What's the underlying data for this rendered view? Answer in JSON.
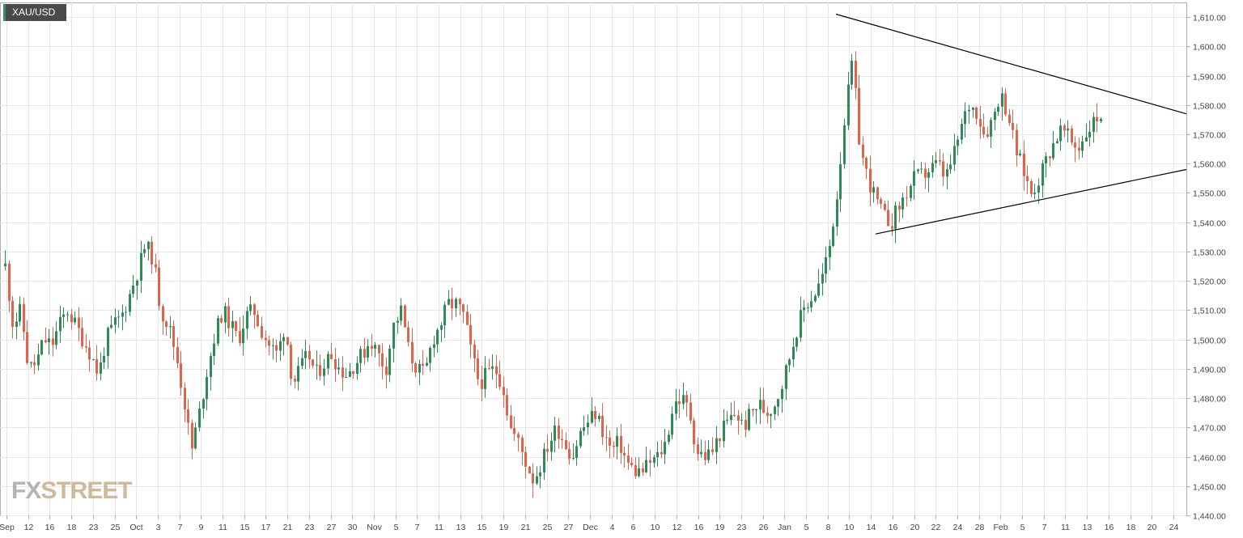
{
  "symbol": "XAU/USD",
  "watermark": {
    "fx": "FX",
    "street": "STREET"
  },
  "colors": {
    "up": "#2e8b57",
    "down": "#e0644c",
    "grid": "#e6e6e6",
    "axis": "#b0b0b0",
    "text": "#444444",
    "trendline": "#000000"
  },
  "chart_data": {
    "type": "candlestick",
    "title": "XAU/USD",
    "ylim": [
      1440,
      1615
    ],
    "yticks": [
      1440,
      1450,
      1460,
      1470,
      1480,
      1490,
      1500,
      1510,
      1520,
      1530,
      1540,
      1550,
      1560,
      1570,
      1580,
      1590,
      1600,
      1610
    ],
    "ytick_labels": [
      "1,440.00",
      "1,450.00",
      "1,460.00",
      "1,470.00",
      "1,480.00",
      "1,490.00",
      "1,500.00",
      "1,510.00",
      "1,520.00",
      "1,530.00",
      "1,540.00",
      "1,550.00",
      "1,560.00",
      "1,570.00",
      "1,580.00",
      "1,590.00",
      "1,600.00",
      "1,610.00"
    ],
    "xticks": [
      "Sep",
      "12",
      "16",
      "18",
      "23",
      "25",
      "Oct",
      "3",
      "7",
      "9",
      "11",
      "15",
      "17",
      "21",
      "23",
      "27",
      "30",
      "Nov",
      "5",
      "7",
      "11",
      "13",
      "15",
      "19",
      "21",
      "25",
      "27",
      "Dec",
      "4",
      "6",
      "10",
      "12",
      "16",
      "19",
      "23",
      "26",
      "Jan",
      "5",
      "8",
      "10",
      "14",
      "16",
      "20",
      "22",
      "24",
      "28",
      "Feb",
      "5",
      "7",
      "11",
      "13",
      "16",
      "18",
      "20",
      "24"
    ],
    "grid": true,
    "path": [
      1525,
      1505,
      1510,
      1490,
      1492,
      1500,
      1498,
      1505,
      1510,
      1505,
      1500,
      1495,
      1488,
      1500,
      1505,
      1508,
      1515,
      1523,
      1532,
      1528,
      1510,
      1505,
      1495,
      1480,
      1462,
      1475,
      1490,
      1502,
      1510,
      1505,
      1500,
      1508,
      1510,
      1503,
      1498,
      1495,
      1505,
      1485,
      1490,
      1495,
      1488,
      1492,
      1495,
      1490,
      1488,
      1492,
      1495,
      1500,
      1495,
      1490,
      1505,
      1510,
      1495,
      1490,
      1488,
      1500,
      1505,
      1512,
      1512,
      1508,
      1495,
      1485,
      1488,
      1490,
      1485,
      1470,
      1465,
      1458,
      1452,
      1458,
      1465,
      1470,
      1465,
      1460,
      1468,
      1472,
      1475,
      1468,
      1462,
      1465,
      1458,
      1455,
      1455,
      1458,
      1460,
      1465,
      1478,
      1480,
      1476,
      1462,
      1460,
      1462,
      1468,
      1472,
      1475,
      1470,
      1475,
      1478,
      1475,
      1478,
      1485,
      1495,
      1505,
      1512,
      1515,
      1520,
      1530,
      1548,
      1575,
      1595,
      1565,
      1555,
      1548,
      1542,
      1540,
      1545,
      1550,
      1555,
      1556,
      1558,
      1560,
      1555,
      1562,
      1572,
      1580,
      1578,
      1570,
      1575,
      1584,
      1578,
      1565,
      1558,
      1550,
      1555,
      1562,
      1568,
      1572,
      1568,
      1565,
      1570,
      1574,
      1577
    ]
  }
}
